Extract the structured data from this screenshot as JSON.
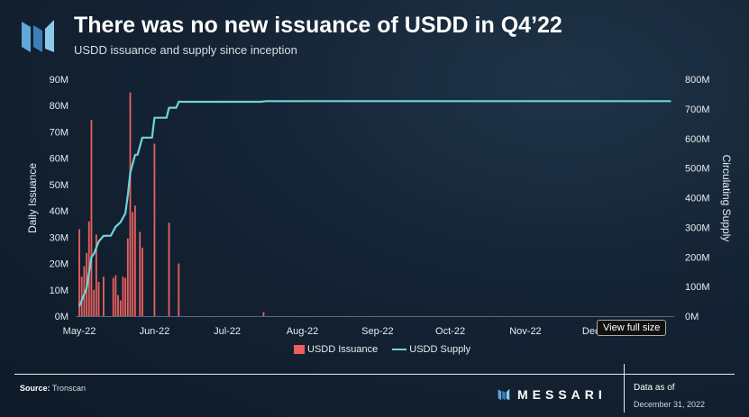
{
  "header": {
    "title": "There was no new issuance of USDD in Q4’22",
    "subtitle": "USDD issuance and supply since inception"
  },
  "footer": {
    "source_label": "Source:",
    "source": "Tronscan",
    "brand": "MESSARI",
    "as_of_label": "Data as of",
    "as_of_date": "December 31, 2022"
  },
  "tooltip": "View full size",
  "colors": {
    "issuance": "#e8615f",
    "supply": "#6fd3dc"
  },
  "chart_data": {
    "type": "bar+line",
    "title": "There was no new issuance of USDD in Q4’22",
    "subtitle": "USDD issuance and supply since inception",
    "ylabel": "Daily Issuance",
    "y2label": "Circulating Supply",
    "ylim": [
      0,
      90
    ],
    "y2lim": [
      0,
      800
    ],
    "yticks": [
      "0M",
      "10M",
      "20M",
      "30M",
      "40M",
      "50M",
      "60M",
      "70M",
      "80M",
      "90M"
    ],
    "y2ticks": [
      "0M",
      "100M",
      "200M",
      "300M",
      "400M",
      "500M",
      "600M",
      "700M",
      "800M"
    ],
    "xticks": [
      "May-22",
      "Jun-22",
      "Jul-22",
      "Aug-22",
      "Sep-22",
      "Oct-22",
      "Nov-22",
      "Dec-22"
    ],
    "xtick_dates": [
      "2022-05-01",
      "2022-06-01",
      "2022-07-01",
      "2022-08-01",
      "2022-09-01",
      "2022-10-01",
      "2022-11-01",
      "2022-12-01"
    ],
    "xrange": [
      "2022-05-01",
      "2022-12-31"
    ],
    "legend": [
      "USDD Issuance",
      "USDD Supply"
    ],
    "legend_position": "bottom",
    "series": [
      {
        "name": "USDD Issuance",
        "type": "bar",
        "unit": "M",
        "points": [
          [
            "2022-05-01",
            33
          ],
          [
            "2022-05-02",
            15
          ],
          [
            "2022-05-03",
            19
          ],
          [
            "2022-05-04",
            24
          ],
          [
            "2022-05-05",
            36
          ],
          [
            "2022-05-06",
            74.5
          ],
          [
            "2022-05-07",
            10
          ],
          [
            "2022-05-08",
            31
          ],
          [
            "2022-05-09",
            13
          ],
          [
            "2022-05-11",
            15
          ],
          [
            "2022-05-15",
            14.5
          ],
          [
            "2022-05-16",
            15.5
          ],
          [
            "2022-05-17",
            8
          ],
          [
            "2022-05-18",
            6
          ],
          [
            "2022-05-19",
            15
          ],
          [
            "2022-05-20",
            14.5
          ],
          [
            "2022-05-21",
            29.5
          ],
          [
            "2022-05-22",
            85
          ],
          [
            "2022-05-23",
            39.5
          ],
          [
            "2022-05-24",
            42
          ],
          [
            "2022-05-26",
            32
          ],
          [
            "2022-05-27",
            26
          ],
          [
            "2022-06-01",
            65.5
          ],
          [
            "2022-06-07",
            35.5
          ],
          [
            "2022-06-11",
            20
          ],
          [
            "2022-07-16",
            1.5
          ]
        ]
      },
      {
        "name": "USDD Supply",
        "type": "line",
        "axis": "right",
        "unit": "M",
        "points": [
          [
            "2022-05-01",
            33
          ],
          [
            "2022-05-04",
            94
          ],
          [
            "2022-05-06",
            200
          ],
          [
            "2022-05-07",
            210
          ],
          [
            "2022-05-09",
            252
          ],
          [
            "2022-05-11",
            271
          ],
          [
            "2022-05-14",
            272
          ],
          [
            "2022-05-16",
            302
          ],
          [
            "2022-05-18",
            317
          ],
          [
            "2022-05-20",
            347
          ],
          [
            "2022-05-21",
            408
          ],
          [
            "2022-05-22",
            484
          ],
          [
            "2022-05-24",
            545
          ],
          [
            "2022-05-25",
            545
          ],
          [
            "2022-05-27",
            603
          ],
          [
            "2022-05-31",
            603
          ],
          [
            "2022-06-01",
            670
          ],
          [
            "2022-06-06",
            670
          ],
          [
            "2022-06-07",
            704
          ],
          [
            "2022-06-10",
            704
          ],
          [
            "2022-06-11",
            724
          ],
          [
            "2022-07-15",
            724
          ],
          [
            "2022-07-17",
            726
          ],
          [
            "2022-12-31",
            726
          ]
        ]
      }
    ]
  }
}
